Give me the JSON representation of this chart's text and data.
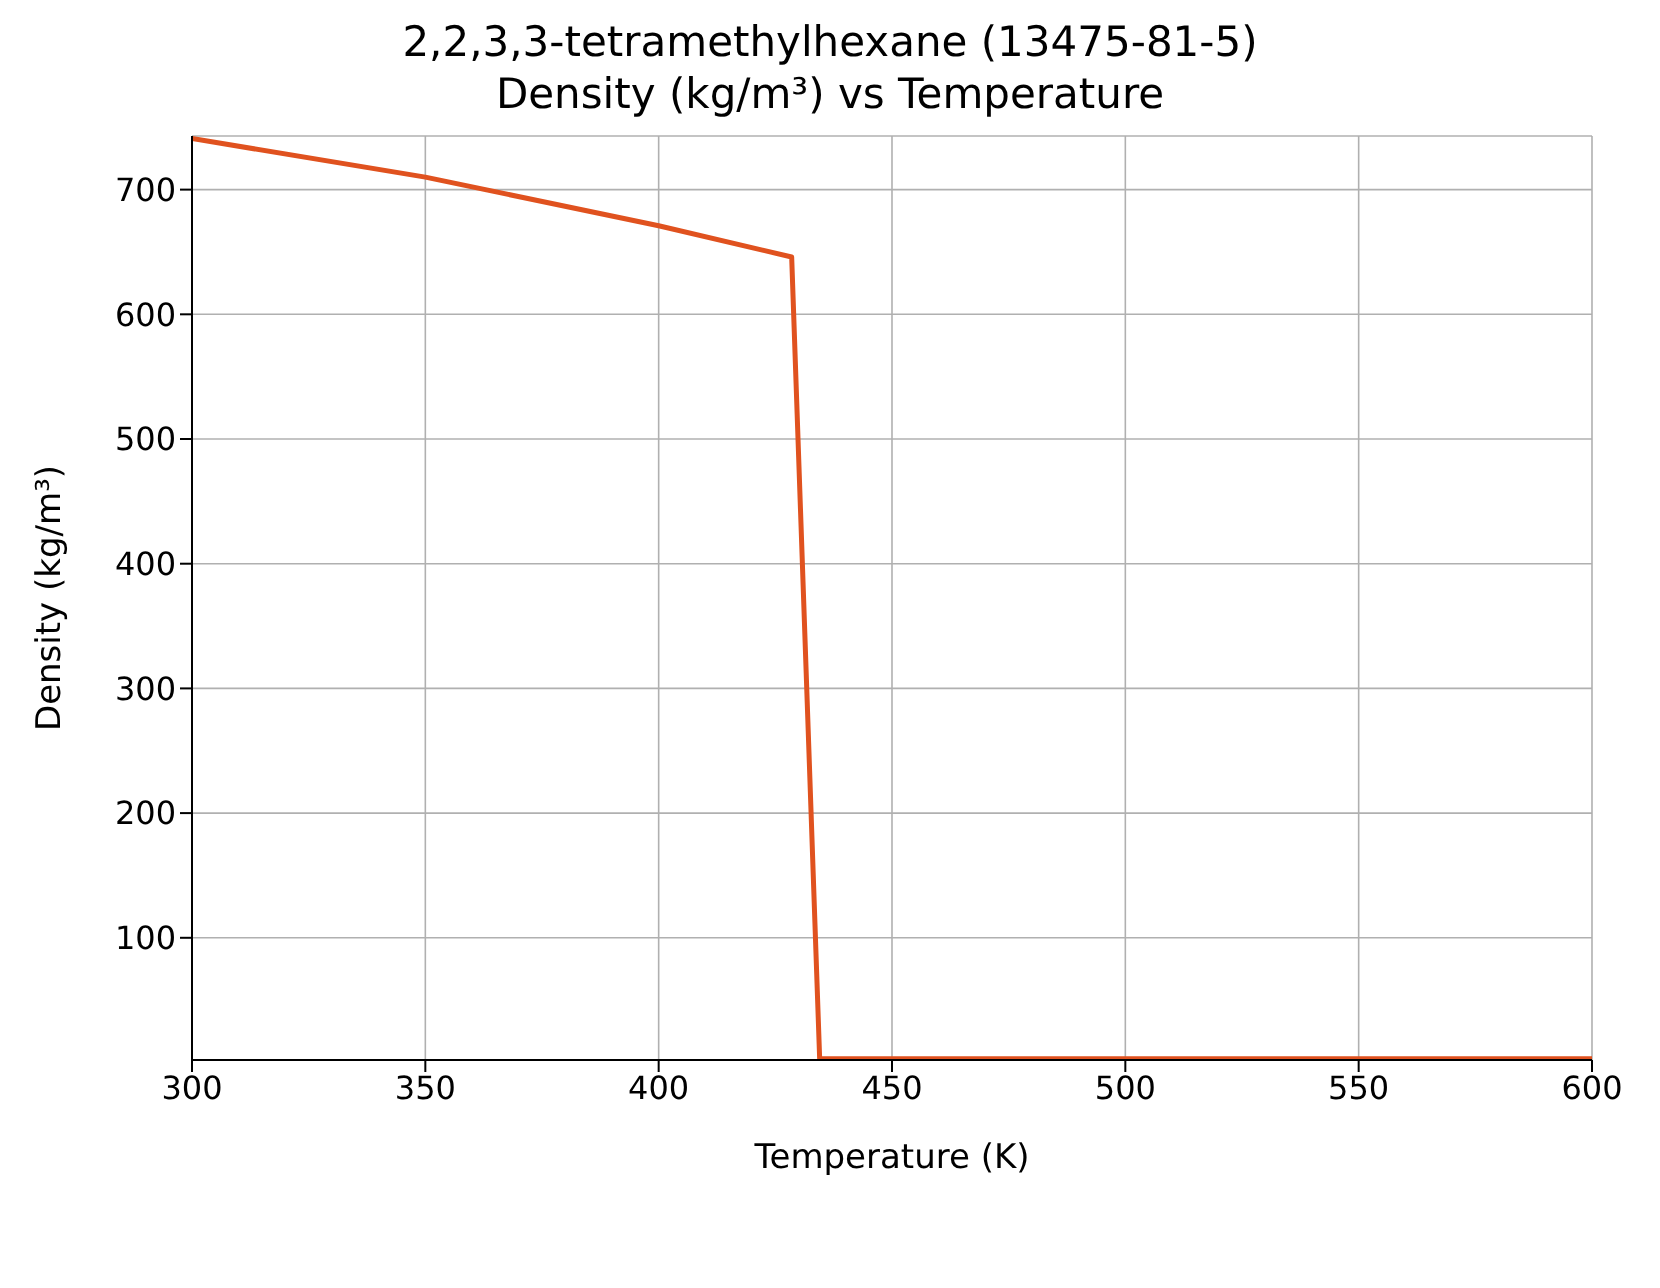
{
  "chart_data": {
    "type": "line",
    "title": "2,2,3,3-tetramethylhexane (13475-81-5)",
    "subtitle": "Density (kg/m³) vs Temperature",
    "xlabel": "Temperature (K)",
    "ylabel": "Density (kg/m³)",
    "x": [
      300,
      350,
      400,
      428.5,
      434.5,
      600
    ],
    "series": [
      {
        "color": "#e0521f",
        "values": [
          741,
          710,
          671,
          646,
          3,
          3
        ]
      }
    ],
    "xlim": [
      300,
      600
    ],
    "xticks": [
      300,
      350,
      400,
      450,
      500,
      550,
      600
    ],
    "ylim": [
      2,
      743
    ],
    "yticks": [
      100,
      200,
      300,
      400,
      500,
      600,
      700
    ],
    "grid": true,
    "legend": false,
    "marker": "none",
    "line_style": "solid"
  }
}
